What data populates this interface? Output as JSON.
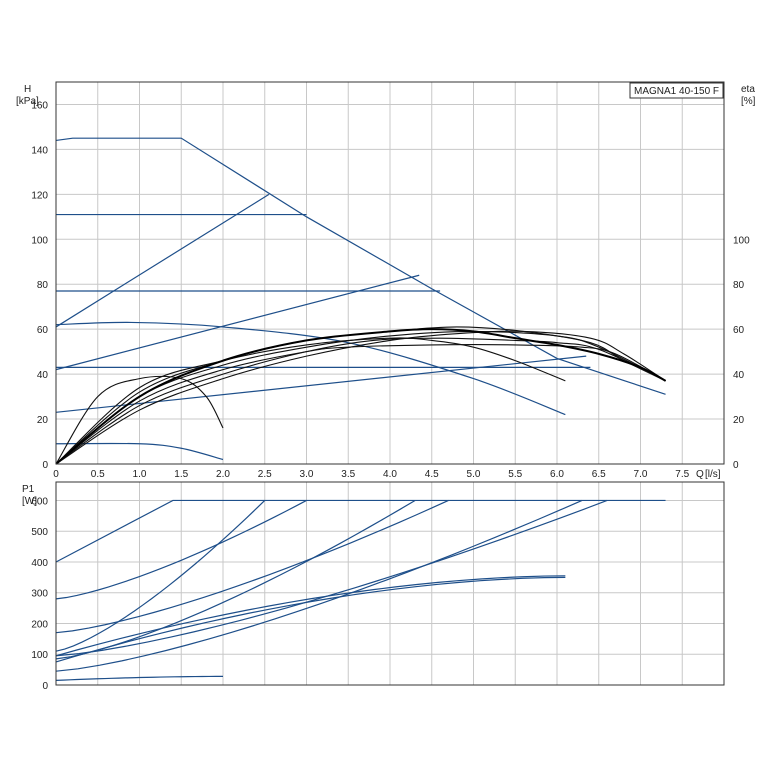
{
  "chart_data": [
    {
      "type": "line",
      "title": "MAGNA1 40-150 F",
      "xlabel": "Q [l/s]",
      "xlabel_unit": "[l/s]",
      "xlabel_q": "Q",
      "ylabel": "H",
      "ylabel_unit": "[kPa]",
      "y2label": "eta",
      "y2label_unit": "[%]",
      "xlim": [
        0,
        8
      ],
      "ylim": [
        0,
        170
      ],
      "y2lim": [
        0,
        170
      ],
      "grid": true,
      "x_ticks": [
        0,
        0.5,
        1.0,
        1.5,
        2.0,
        2.5,
        3.0,
        3.5,
        4.0,
        4.5,
        5.0,
        5.5,
        6.0,
        6.5,
        7.0,
        7.5
      ],
      "x_tick_labels": [
        "0",
        "0.5",
        "1.0",
        "1.5",
        "2.0",
        "2.5",
        "3.0",
        "3.5",
        "4.0",
        "4.5",
        "5.0",
        "5.5",
        "6.0",
        "6.5",
        "7.0",
        "7.5"
      ],
      "y_ticks": [
        0,
        20,
        40,
        60,
        80,
        100,
        120,
        140,
        160
      ],
      "y2_ticks": [
        0,
        20,
        40,
        60,
        80,
        100
      ],
      "series": [
        {
          "kind": "head",
          "x": [
            0,
            0.2,
            1.5,
            3.0,
            4.5,
            6.0,
            7.3
          ],
          "y": [
            144,
            145,
            145,
            110,
            78,
            47,
            31
          ]
        },
        {
          "kind": "head",
          "x": [
            0,
            3.0
          ],
          "y": [
            111,
            111
          ]
        },
        {
          "kind": "head",
          "x": [
            0,
            4.6
          ],
          "y": [
            77,
            77
          ]
        },
        {
          "kind": "head",
          "x": [
            0,
            6.4
          ],
          "y": [
            43,
            43
          ]
        },
        {
          "kind": "head",
          "x": [
            0,
            1.0,
            1.5,
            2.0
          ],
          "y": [
            9,
            9,
            7,
            2
          ]
        },
        {
          "kind": "head",
          "x": [
            0,
            0.9,
            2.0,
            3.5,
            5.0,
            6.1
          ],
          "y": [
            62,
            63,
            61,
            54,
            38,
            22
          ]
        },
        {
          "kind": "control",
          "x": [
            0,
            2.55
          ],
          "y": [
            61,
            120
          ]
        },
        {
          "kind": "control",
          "x": [
            0,
            4.35
          ],
          "y": [
            42,
            84
          ]
        },
        {
          "kind": "control",
          "x": [
            0,
            6.35
          ],
          "y": [
            23,
            48
          ]
        },
        {
          "kind": "eta",
          "x": [
            0,
            0.5,
            1.0,
            1.5,
            1.8,
            2.0
          ],
          "y": [
            0,
            30,
            38,
            38,
            30,
            16
          ]
        },
        {
          "kind": "eta",
          "x": [
            0,
            1.0,
            2.0,
            3.0,
            4.0,
            4.5,
            5.0,
            5.5,
            6.1
          ],
          "y": [
            0,
            34,
            46,
            53,
            56,
            55,
            52,
            46,
            37
          ]
        },
        {
          "kind": "eta",
          "x": [
            0,
            1.0,
            2.0,
            3.0,
            4.0,
            5.0,
            6.0,
            6.5,
            7.3
          ],
          "y": [
            0,
            30,
            44,
            52,
            57,
            59,
            57,
            52,
            37
          ]
        },
        {
          "kind": "eta",
          "x": [
            0,
            1.0,
            2.0,
            3.0,
            3.5,
            4.5,
            5.5,
            6.3,
            6.7,
            7.3
          ],
          "y": [
            0,
            28,
            42,
            50,
            52,
            53,
            53,
            52,
            49,
            37
          ]
        },
        {
          "kind": "eta",
          "x": [
            0,
            1.0,
            2.0,
            3.0,
            3.8,
            4.6,
            5.5,
            6.0,
            6.5,
            7.3
          ],
          "y": [
            0,
            26,
            40,
            50,
            55,
            56,
            55,
            54,
            51,
            37
          ]
        },
        {
          "kind": "eta",
          "x": [
            0,
            1.0,
            2.0,
            3.0,
            4.0,
            4.8,
            5.6,
            6.4,
            6.8,
            7.3
          ],
          "y": [
            0,
            24,
            38,
            48,
            55,
            58,
            59,
            56,
            49,
            37
          ]
        },
        {
          "kind": "eta",
          "x": [
            0,
            1.0,
            2.0,
            3.0,
            4.0,
            4.8,
            5.6,
            6.4,
            6.8,
            7.3
          ],
          "y": [
            0,
            32,
            46,
            55,
            59,
            61,
            59,
            54,
            46,
            37
          ]
        },
        {
          "kind": "eta-bold",
          "x": [
            0,
            1.0,
            2.0,
            3.0,
            4.0,
            4.5,
            5.0,
            5.5,
            6.0,
            6.5,
            7.0,
            7.3
          ],
          "y": [
            0,
            30,
            46,
            55,
            59,
            60,
            59,
            56,
            53,
            49,
            43,
            37
          ]
        }
      ]
    },
    {
      "type": "line",
      "xlabel": "",
      "ylabel": "P1",
      "ylabel_unit": "[W]",
      "xlim": [
        0,
        8
      ],
      "ylim": [
        0,
        660
      ],
      "grid": true,
      "y_ticks": [
        0,
        100,
        200,
        300,
        400,
        500,
        600
      ],
      "series": [
        {
          "x": [
            0,
            1.4,
            7.3
          ],
          "y": [
            400,
            600,
            600
          ]
        },
        {
          "x": [
            0,
            3.0
          ],
          "y": [
            280,
            600
          ]
        },
        {
          "x": [
            0,
            2.5
          ],
          "y": [
            110,
            600
          ]
        },
        {
          "x": [
            0,
            4.7
          ],
          "y": [
            170,
            600
          ]
        },
        {
          "x": [
            0,
            4.3
          ],
          "y": [
            85,
            600
          ]
        },
        {
          "x": [
            0,
            6.6
          ],
          "y": [
            95,
            600
          ]
        },
        {
          "x": [
            0,
            6.3
          ],
          "y": [
            45,
            600
          ]
        },
        {
          "x": [
            0,
            6.1
          ],
          "y": [
            95,
            355
          ]
        },
        {
          "x": [
            0,
            6.1
          ],
          "y": [
            75,
            350
          ]
        },
        {
          "x": [
            0,
            2.0
          ],
          "y": [
            15,
            28
          ]
        }
      ]
    }
  ]
}
